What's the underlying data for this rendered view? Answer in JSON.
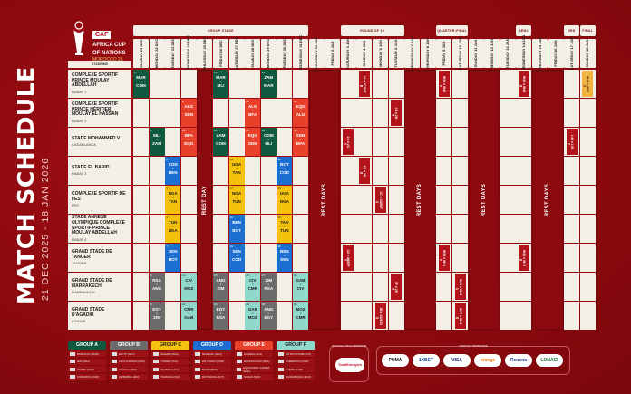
{
  "title": "MATCH SCHEDULE",
  "subtitle": "21 DEC 2025 - 18 JAN 2026",
  "logo": {
    "caf": "CAF",
    "line1": "AFRICA CUP",
    "line2": "OF NATIONS",
    "line3": "MOROCCO 25"
  },
  "venue_header": "STADIUMS",
  "stages": {
    "group": "GROUP STAGE",
    "r16": "ROUND OF 16",
    "qf": "QUARTER-FINAL",
    "sf": "SEMI-FINAL",
    "third": "3RD PLACE",
    "final": "FINAL"
  },
  "days": [
    "SUNDAY 21 DEC",
    "MONDAY 22 DEC",
    "TUESDAY 23 DEC",
    "WEDNESDAY 24 DEC",
    "THURSDAY 25 DEC",
    "FRIDAY 26 DEC",
    "SATURDAY 27 DEC",
    "SUNDAY 28 DEC",
    "MONDAY 29 DEC",
    "TUESDAY 30 DEC",
    "WEDNESDAY 31 DEC",
    "THURSDAY 01 JAN",
    "FRIDAY 2 JAN",
    "SATURDAY 3 JAN",
    "SUNDAY 4 JAN",
    "MONDAY 5 JAN",
    "TUESDAY 6 JAN",
    "WEDNESDAY 7 JAN",
    "THURSDAY 8 JAN",
    "FRIDAY 9 JAN",
    "SATURDAY 10 JAN",
    "SUNDAY 11 JAN",
    "MONDAY 12 JAN",
    "TUESDAY 13 JAN",
    "WEDNESDAY 14 JAN",
    "THURSDAY 15 JAN",
    "FRIDAY 16 JAN",
    "SATURDAY 17 JAN",
    "SUNDAY 18 JAN"
  ],
  "rest_label": "REST DAY",
  "rest_days_label": "REST DAYS",
  "venues": [
    {
      "name": "COMPLEXE SPORTIF PRINCE MOULAY ABDELLAH",
      "city": "RABAT 1"
    },
    {
      "name": "COMPLEXE SPORTIF PRINCE HÉRITIER MOULAY EL HASSAN",
      "city": "RABAT 2"
    },
    {
      "name": "STADE MOHAMMED V",
      "city": "CASABLANCA"
    },
    {
      "name": "STADE EL BARID",
      "city": "RABAT 3"
    },
    {
      "name": "COMPLEXE SPORTIF DE FES",
      "city": "FES"
    },
    {
      "name": "STADE ANNEXE OLYMPIQUE COMPLEXE SPORTIF PRINCE MOULAY ABDELLAH",
      "city": "RABAT 4"
    },
    {
      "name": "GRAND STADE DE TANGER",
      "city": "TANGER"
    },
    {
      "name": "GRAND STADE DE MARRAKECH",
      "city": "MARRAKECH"
    },
    {
      "name": "GRAND STADE D'AGADIR",
      "city": "AGADIR"
    }
  ],
  "group_colors": {
    "A": "#0f5a3f",
    "B": "#6b6b6b",
    "C": "#f4c20d",
    "D": "#1c6fd1",
    "E": "#e8402a",
    "F": "#8fd8cb"
  },
  "matches": [
    {
      "no": "1",
      "home": "MAR",
      "away": "COM",
      "v": "v",
      "venue": 0,
      "day": 0,
      "group": "A"
    },
    {
      "no": "2",
      "home": "MLI",
      "away": "ZAM",
      "v": "v",
      "venue": 2,
      "day": 1,
      "group": "A"
    },
    {
      "no": "3",
      "home": "EGY",
      "away": "ZIM",
      "v": "v",
      "venue": 8,
      "day": 1,
      "group": "B"
    },
    {
      "no": "4",
      "home": "RSA",
      "away": "ANG",
      "v": "v",
      "venue": 7,
      "day": 1,
      "group": "B"
    },
    {
      "no": "5",
      "home": "NGA",
      "away": "TAN",
      "v": "v",
      "venue": 4,
      "day": 2,
      "group": "C"
    },
    {
      "no": "6",
      "home": "TUN",
      "away": "UGA",
      "v": "v",
      "venue": 5,
      "day": 2,
      "group": "C"
    },
    {
      "no": "7",
      "home": "SEN",
      "away": "BOT",
      "v": "v",
      "venue": 6,
      "day": 2,
      "group": "D"
    },
    {
      "no": "8",
      "home": "COD",
      "away": "BEN",
      "v": "v",
      "venue": 3,
      "day": 2,
      "group": "D"
    },
    {
      "no": "9",
      "home": "ALG",
      "away": "SDN",
      "v": "v",
      "venue": 1,
      "day": 3,
      "group": "E"
    },
    {
      "no": "10",
      "home": "BFA",
      "away": "EQG",
      "v": "v",
      "venue": 2,
      "day": 3,
      "group": "E"
    },
    {
      "no": "11",
      "home": "CIV",
      "away": "MOZ",
      "v": "v",
      "venue": 7,
      "day": 3,
      "group": "F"
    },
    {
      "no": "12",
      "home": "CMR",
      "away": "GAB",
      "v": "v",
      "venue": 8,
      "day": 3,
      "group": "F"
    },
    {
      "no": "13",
      "home": "MAR",
      "away": "MLI",
      "v": "v",
      "venue": 0,
      "day": 5,
      "group": "A"
    },
    {
      "no": "14",
      "home": "ZAM",
      "away": "COM",
      "v": "v",
      "venue": 2,
      "day": 5,
      "group": "A"
    },
    {
      "no": "15",
      "home": "ANG",
      "away": "ZIM",
      "v": "v",
      "venue": 7,
      "day": 5,
      "group": "B"
    },
    {
      "no": "16",
      "home": "EGY",
      "away": "RSA",
      "v": "v",
      "venue": 8,
      "day": 5,
      "group": "B"
    },
    {
      "no": "17",
      "home": "NGA",
      "away": "TUN",
      "v": "v",
      "venue": 4,
      "day": 6,
      "group": "C"
    },
    {
      "no": "18",
      "home": "UGA",
      "away": "TAN",
      "v": "v",
      "venue": 3,
      "day": 6,
      "group": "C"
    },
    {
      "no": "19",
      "home": "SEN",
      "away": "COD",
      "v": "v",
      "venue": 6,
      "day": 6,
      "group": "D"
    },
    {
      "no": "20",
      "home": "BEN",
      "away": "BOT",
      "v": "v",
      "venue": 5,
      "day": 6,
      "group": "D"
    },
    {
      "no": "21",
      "home": "ALG",
      "away": "BFA",
      "v": "v",
      "venue": 1,
      "day": 7,
      "group": "E"
    },
    {
      "no": "22",
      "home": "EQG",
      "away": "SDN",
      "v": "v",
      "venue": 2,
      "day": 7,
      "group": "E"
    },
    {
      "no": "23",
      "home": "CIV",
      "away": "CMR",
      "v": "v",
      "venue": 7,
      "day": 7,
      "group": "F"
    },
    {
      "no": "24",
      "home": "GAB",
      "away": "MOZ",
      "v": "v",
      "venue": 8,
      "day": 7,
      "group": "F"
    },
    {
      "no": "25",
      "home": "ZAM",
      "away": "MAR",
      "v": "v",
      "venue": 0,
      "day": 8,
      "group": "A"
    },
    {
      "no": "26",
      "home": "COM",
      "away": "MLI",
      "v": "v",
      "venue": 2,
      "day": 8,
      "group": "A"
    },
    {
      "no": "27",
      "home": "ZIM",
      "away": "RSA",
      "v": "v",
      "venue": 7,
      "day": 8,
      "group": "B"
    },
    {
      "no": "28",
      "home": "ANG",
      "away": "EGY",
      "v": "v",
      "venue": 8,
      "day": 8,
      "group": "B"
    },
    {
      "no": "29",
      "home": "UGA",
      "away": "NGA",
      "v": "v",
      "venue": 4,
      "day": 9,
      "group": "C"
    },
    {
      "no": "30",
      "home": "TAN",
      "away": "TUN",
      "v": "v",
      "venue": 5,
      "day": 9,
      "group": "C"
    },
    {
      "no": "31",
      "home": "BEN",
      "away": "SEN",
      "v": "v",
      "venue": 6,
      "day": 9,
      "group": "D"
    },
    {
      "no": "32",
      "home": "BOT",
      "away": "COD",
      "v": "v",
      "venue": 3,
      "day": 9,
      "group": "D"
    },
    {
      "no": "33",
      "home": "EQG",
      "away": "ALG",
      "v": "v",
      "venue": 1,
      "day": 10,
      "group": "E"
    },
    {
      "no": "34",
      "home": "SDN",
      "away": "BFA",
      "v": "v",
      "venue": 2,
      "day": 10,
      "group": "E"
    },
    {
      "no": "35",
      "home": "GAB",
      "away": "CIV",
      "v": "v",
      "venue": 7,
      "day": 10,
      "group": "F"
    },
    {
      "no": "36",
      "home": "MOZ",
      "away": "CMR",
      "v": "v",
      "venue": 8,
      "day": 10,
      "group": "F"
    }
  ],
  "knockouts": [
    {
      "no": "38",
      "label": "1A v 3C/D/E",
      "venue": 0,
      "day": 14
    },
    {
      "no": "40",
      "label": "1B v 3A/C/D",
      "venue": 8,
      "day": 15
    },
    {
      "no": "37",
      "label": "2A v 2C",
      "venue": 2,
      "day": 13
    },
    {
      "no": "41",
      "label": "1C v 3A/B/F",
      "venue": 4,
      "day": 15
    },
    {
      "no": "43",
      "label": "1D v 3B/E/F",
      "venue": 6,
      "day": 13
    },
    {
      "no": "39",
      "label": "2D v 2E",
      "venue": 3,
      "day": 14
    },
    {
      "no": "42",
      "label": "1E v 2D",
      "venue": 1,
      "day": 16
    },
    {
      "no": "44",
      "label": "1F v 2E",
      "venue": 7,
      "day": 16
    },
    {
      "no": "45",
      "label": "W38 v W40",
      "venue": 0,
      "day": 19
    },
    {
      "no": "46",
      "label": "W39 v W41",
      "venue": 6,
      "day": 19
    },
    {
      "no": "47",
      "label": "W43 v W42",
      "venue": 7,
      "day": 20
    },
    {
      "no": "48",
      "label": "W37 v W44",
      "venue": 8,
      "day": 20
    },
    {
      "no": "49",
      "label": "W45 v W48",
      "venue": 0,
      "day": 24
    },
    {
      "no": "50",
      "label": "W46 v W47",
      "venue": 6,
      "day": 24
    },
    {
      "no": "51",
      "label": "L49 v L50",
      "venue": 2,
      "day": 27
    },
    {
      "no": "52",
      "label": "W49 v W50",
      "venue": 0,
      "day": 28
    }
  ],
  "legend": [
    {
      "name": "GROUP A",
      "teams": [
        "MOROCCO (MAR)",
        "MALI (MLI)",
        "ZAMBIA (ZAM)",
        "COMOROS (COM)"
      ]
    },
    {
      "name": "GROUP B",
      "teams": [
        "EGYPT (EGY)",
        "SOUTH AFRICA (RSA)",
        "ANGOLA (ANG)",
        "ZIMBABWE (ZIM)"
      ]
    },
    {
      "name": "GROUP C",
      "teams": [
        "NIGERIA (NGA)",
        "TUNISIA (TUN)",
        "UGANDA (UGA)",
        "TANZANIA (TAN)"
      ]
    },
    {
      "name": "GROUP D",
      "teams": [
        "SENEGAL (SEN)",
        "DR CONGO (COD)",
        "BENIN (BEN)",
        "BOTSWANA (BOT)"
      ]
    },
    {
      "name": "GROUP E",
      "teams": [
        "ALGERIA (ALG)",
        "BURKINA FASO (BFA)",
        "EQUATORIAL GUINEA (EQG)",
        "SUDAN (SDN)"
      ]
    },
    {
      "name": "GROUP F",
      "teams": [
        "COTE D'IVOIRE (CIV)",
        "CAMEROON (CMR)",
        "GABON (GAB)",
        "MOZAMBIQUE (MOZ)"
      ]
    }
  ],
  "title_sponsor": {
    "label": "OFFICIAL TITLE SPONSOR",
    "name": "TotalEnergies"
  },
  "sponsors": {
    "label": "OFFICIAL SPONSORS",
    "names": [
      "PUMA",
      "1XBET",
      "VISA",
      "orange",
      "Rexona",
      "LONACI"
    ]
  }
}
